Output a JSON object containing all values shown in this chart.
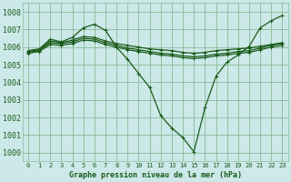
{
  "background_color": "#cce8e8",
  "grid_color": "#88bb99",
  "line_color": "#1a5c1a",
  "title": "Graphe pression niveau de la mer (hPa)",
  "xlim": [
    -0.5,
    23.5
  ],
  "ylim": [
    999.5,
    1008.5
  ],
  "yticks": [
    1000,
    1001,
    1002,
    1003,
    1004,
    1005,
    1006,
    1007,
    1008
  ],
  "xticks": [
    0,
    1,
    2,
    3,
    4,
    5,
    6,
    7,
    8,
    9,
    10,
    11,
    12,
    13,
    14,
    15,
    16,
    17,
    18,
    19,
    20,
    21,
    22,
    23
  ],
  "series": [
    {
      "x": [
        0,
        1,
        2,
        3,
        4,
        5,
        6,
        7,
        8,
        9,
        10,
        11,
        12,
        13,
        14,
        15,
        16,
        17,
        18,
        19,
        20,
        21,
        22,
        23
      ],
      "y": [
        1005.8,
        1005.9,
        1006.45,
        1006.3,
        1006.55,
        1007.1,
        1007.3,
        1006.95,
        1006.0,
        1005.3,
        1004.5,
        1003.7,
        1002.1,
        1001.4,
        1000.85,
        1000.05,
        1002.55,
        1004.35,
        1005.15,
        1005.55,
        1006.05,
        1007.1,
        1007.5,
        1007.8
      ]
    },
    {
      "x": [
        0,
        1,
        2,
        3,
        4,
        5,
        6,
        7,
        8,
        9,
        10,
        11,
        12,
        13,
        14,
        15,
        16,
        17,
        18,
        19,
        20,
        21,
        22,
        23
      ],
      "y": [
        1005.75,
        1005.85,
        1006.35,
        1006.25,
        1006.4,
        1006.6,
        1006.55,
        1006.35,
        1006.2,
        1006.1,
        1006.0,
        1005.9,
        1005.85,
        1005.8,
        1005.7,
        1005.65,
        1005.7,
        1005.8,
        1005.85,
        1005.9,
        1005.95,
        1006.05,
        1006.15,
        1006.25
      ]
    },
    {
      "x": [
        0,
        1,
        2,
        3,
        4,
        5,
        6,
        7,
        8,
        9,
        10,
        11,
        12,
        13,
        14,
        15,
        16,
        17,
        18,
        19,
        20,
        21,
        22,
        23
      ],
      "y": [
        1005.7,
        1005.8,
        1006.25,
        1006.2,
        1006.3,
        1006.5,
        1006.45,
        1006.25,
        1006.1,
        1005.95,
        1005.85,
        1005.75,
        1005.65,
        1005.6,
        1005.5,
        1005.45,
        1005.5,
        1005.6,
        1005.65,
        1005.75,
        1005.8,
        1005.95,
        1006.1,
        1006.2
      ]
    },
    {
      "x": [
        0,
        1,
        2,
        3,
        4,
        5,
        6,
        7,
        8,
        9,
        10,
        11,
        12,
        13,
        14,
        15,
        16,
        17,
        18,
        19,
        20,
        21,
        22,
        23
      ],
      "y": [
        1005.65,
        1005.75,
        1006.15,
        1006.1,
        1006.2,
        1006.4,
        1006.35,
        1006.15,
        1006.0,
        1005.85,
        1005.75,
        1005.65,
        1005.55,
        1005.5,
        1005.4,
        1005.35,
        1005.4,
        1005.5,
        1005.55,
        1005.65,
        1005.7,
        1005.85,
        1006.0,
        1006.1
      ]
    }
  ]
}
